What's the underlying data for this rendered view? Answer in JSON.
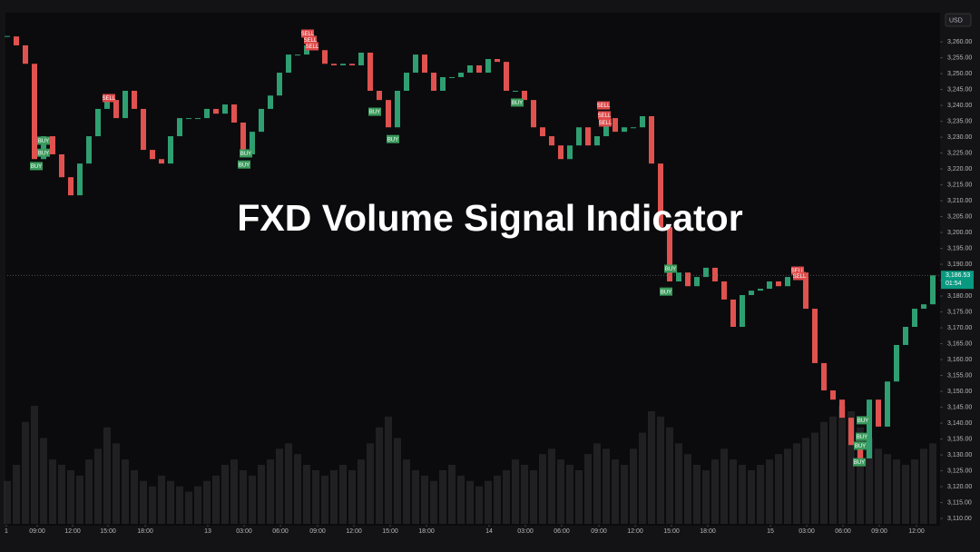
{
  "chart_data": {
    "type": "candlestick",
    "title": "FXD Volume Signal Indicator",
    "currency": "USD",
    "up_color": "#2f9f72",
    "down_color": "#e0524f",
    "buy_color": "#3a9a5c",
    "sell_color": "#e04a4a",
    "ylim": [
      3108.3,
      3268.6
    ],
    "xlim": [
      0,
      102.7
    ],
    "yticks": [
      {
        "value": 3260,
        "label": "3,260.00"
      },
      {
        "value": 3255,
        "label": "3,255.00"
      },
      {
        "value": 3250,
        "label": "3,250.00"
      },
      {
        "value": 3245,
        "label": "3,245.00"
      },
      {
        "value": 3240,
        "label": "3,240.00"
      },
      {
        "value": 3235,
        "label": "3,235.00"
      },
      {
        "value": 3230,
        "label": "3,230.00"
      },
      {
        "value": 3225,
        "label": "3,225.00"
      },
      {
        "value": 3220,
        "label": "3,220.00"
      },
      {
        "value": 3215,
        "label": "3,215.00"
      },
      {
        "value": 3210,
        "label": "3,210.00"
      },
      {
        "value": 3205,
        "label": "3,205.00"
      },
      {
        "value": 3200,
        "label": "3,200.00"
      },
      {
        "value": 3195,
        "label": "3,195.00"
      },
      {
        "value": 3190,
        "label": "3,190.00"
      },
      {
        "value": 3185,
        "label": "3,185.00"
      },
      {
        "value": 3180,
        "label": "3,180.00"
      },
      {
        "value": 3175,
        "label": "3,175.00"
      },
      {
        "value": 3170,
        "label": "3,170.00"
      },
      {
        "value": 3165,
        "label": "3,165.00"
      },
      {
        "value": 3160,
        "label": "3,160.00"
      },
      {
        "value": 3155,
        "label": "3,155.00"
      },
      {
        "value": 3150,
        "label": "3,150.00"
      },
      {
        "value": 3145,
        "label": "3,145.00"
      },
      {
        "value": 3140,
        "label": "3,140.00"
      },
      {
        "value": 3135,
        "label": "3,135.00"
      },
      {
        "value": 3130,
        "label": "3,130.00"
      },
      {
        "value": 3125,
        "label": "3,125.00"
      },
      {
        "value": 3120,
        "label": "3,120.00"
      },
      {
        "value": 3115,
        "label": "3,115.00"
      },
      {
        "value": 3110,
        "label": "3,110.00"
      }
    ],
    "xticks": [
      {
        "value": -0.1,
        "label": "1"
      },
      {
        "value": 3.3,
        "label": "09:00"
      },
      {
        "value": 7.2,
        "label": "12:00"
      },
      {
        "value": 11.1,
        "label": "15:00"
      },
      {
        "value": 15.2,
        "label": "18:00"
      },
      {
        "value": 22.1,
        "label": "13"
      },
      {
        "value": 26.1,
        "label": "03:00"
      },
      {
        "value": 30.1,
        "label": "06:00"
      },
      {
        "value": 34.2,
        "label": "09:00"
      },
      {
        "value": 38.2,
        "label": "12:00"
      },
      {
        "value": 42.2,
        "label": "15:00"
      },
      {
        "value": 46.2,
        "label": "18:00"
      },
      {
        "value": 53.1,
        "label": "14"
      },
      {
        "value": 57.1,
        "label": "03:00"
      },
      {
        "value": 61.1,
        "label": "06:00"
      },
      {
        "value": 65.2,
        "label": "09:00"
      },
      {
        "value": 69.2,
        "label": "12:00"
      },
      {
        "value": 73.2,
        "label": "15:00"
      },
      {
        "value": 77.2,
        "label": "18:00"
      },
      {
        "value": 84.1,
        "label": "15"
      },
      {
        "value": 88.1,
        "label": "03:00"
      },
      {
        "value": 92.1,
        "label": "06:00"
      },
      {
        "value": 96.1,
        "label": "09:00"
      },
      {
        "value": 100.2,
        "label": "12:00"
      }
    ],
    "close": [
      3261.7,
      3258.9,
      3253.1,
      3223.1,
      3230.3,
      3224.6,
      3217.4,
      3211.7,
      3221.7,
      3230.3,
      3238.9,
      3241.7,
      3236.0,
      3244.6,
      3238.9,
      3226.0,
      3223.1,
      3221.7,
      3230.3,
      3236.0,
      3236.0,
      3236.0,
      3238.9,
      3237.4,
      3240.3,
      3234.6,
      3224.6,
      3231.7,
      3238.9,
      3243.1,
      3250.3,
      3256.0,
      3256.0,
      3258.9,
      3257.4,
      3253.1,
      3252.6,
      3253.1,
      3252.6,
      3256.6,
      3244.6,
      3241.7,
      3233.1,
      3244.6,
      3250.3,
      3256.0,
      3250.3,
      3244.6,
      3248.9,
      3248.9,
      3250.3,
      3252.6,
      3250.3,
      3254.6,
      3253.7,
      3244.6,
      3244.6,
      3241.7,
      3233.1,
      3230.3,
      3227.4,
      3223.1,
      3227.4,
      3233.1,
      3227.4,
      3230.3,
      3236.0,
      3231.7,
      3233.1,
      3233.1,
      3236.6,
      3221.7,
      3201.7,
      3184.6,
      3187.4,
      3183.1,
      3186.0,
      3188.9,
      3184.6,
      3178.9,
      3170.3,
      3180.3,
      3181.7,
      3182.3,
      3184.6,
      3183.1,
      3186.0,
      3187.4,
      3176.0,
      3158.9,
      3150.3,
      3147.4,
      3141.7,
      3133.1,
      3128.9,
      3147.4,
      3138.9,
      3153.1,
      3164.6,
      3170.3,
      3176.0,
      3177.4,
      3186.5
    ],
    "volume": [
      40,
      55,
      95,
      110,
      80,
      60,
      55,
      50,
      45,
      60,
      70,
      90,
      75,
      60,
      50,
      40,
      35,
      45,
      40,
      35,
      30,
      35,
      40,
      45,
      55,
      60,
      50,
      45,
      55,
      60,
      70,
      75,
      65,
      55,
      50,
      45,
      50,
      55,
      50,
      60,
      75,
      90,
      100,
      80,
      60,
      50,
      45,
      40,
      50,
      55,
      45,
      40,
      35,
      40,
      45,
      50,
      60,
      55,
      50,
      65,
      70,
      60,
      55,
      50,
      65,
      75,
      70,
      60,
      55,
      70,
      85,
      105,
      100,
      90,
      75,
      65,
      55,
      50,
      60,
      70,
      60,
      55,
      50,
      55,
      60,
      65,
      70,
      75,
      80,
      85,
      95,
      100,
      110,
      105,
      90,
      80,
      70,
      65,
      60,
      55,
      60,
      70,
      75
    ],
    "signals": [
      {
        "label": "SELL",
        "x": 11.2,
        "price": 3242.3
      },
      {
        "label": "BUY",
        "x": 4,
        "price": 3228.9
      },
      {
        "label": "BUY",
        "x": 4,
        "price": 3225.1
      },
      {
        "label": "BUY",
        "x": 3.2,
        "price": 3220.9
      },
      {
        "label": "BUY",
        "x": 26.3,
        "price": 3224.9
      },
      {
        "label": "BUY",
        "x": 26.1,
        "price": 3221.4
      },
      {
        "label": "SELL",
        "x": 33.1,
        "price": 3262.6
      },
      {
        "label": "SELL",
        "x": 33.4,
        "price": 3260.6
      },
      {
        "label": "SELL",
        "x": 33.6,
        "price": 3258.6
      },
      {
        "label": "BUY",
        "x": 40.5,
        "price": 3238.0
      },
      {
        "label": "BUY",
        "x": 42.5,
        "price": 3229.4
      },
      {
        "label": "BUY",
        "x": 56.2,
        "price": 3240.9
      },
      {
        "label": "SELL",
        "x": 65.7,
        "price": 3240.0
      },
      {
        "label": "SELL",
        "x": 65.8,
        "price": 3236.9
      },
      {
        "label": "SELL",
        "x": 65.9,
        "price": 3234.6
      },
      {
        "label": "BUY",
        "x": 73.1,
        "price": 3188.6
      },
      {
        "label": "BUY",
        "x": 72.6,
        "price": 3181.4
      },
      {
        "label": "SELL",
        "x": 87.1,
        "price": 3188.0
      },
      {
        "label": "SELL",
        "x": 87.3,
        "price": 3186.3
      },
      {
        "label": "BUY",
        "x": 94.3,
        "price": 3140.9
      },
      {
        "label": "BUY",
        "x": 94.2,
        "price": 3135.7
      },
      {
        "label": "BUY",
        "x": 94.0,
        "price": 3132.9
      },
      {
        "label": "BUY",
        "x": 93.9,
        "price": 3127.7
      }
    ],
    "last_price": {
      "value": 3186.53,
      "label": "3,186.53"
    },
    "countdown": "01:54",
    "last_price_color": "#089981"
  }
}
